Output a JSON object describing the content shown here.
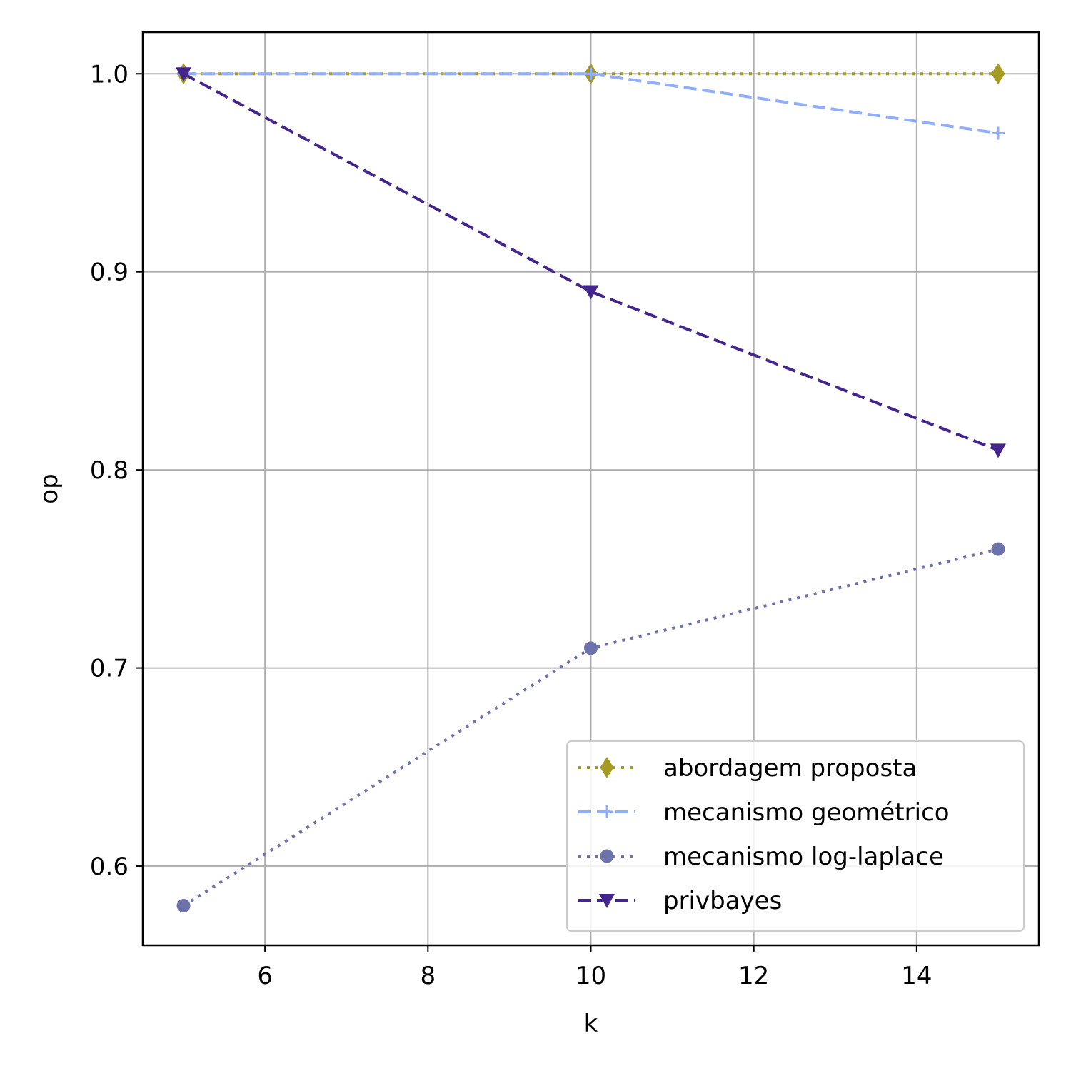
{
  "chart_data": {
    "type": "line",
    "xlabel": "k",
    "ylabel": "op",
    "xlim": [
      4.5,
      15.5
    ],
    "ylim": [
      0.56,
      1.021
    ],
    "xticks": [
      6,
      8,
      10,
      12,
      14
    ],
    "xtick_labels": [
      "6",
      "8",
      "10",
      "12",
      "14"
    ],
    "yticks": [
      0.6,
      0.7,
      0.8,
      0.9,
      1.0
    ],
    "ytick_labels": [
      "0.6",
      "0.7",
      "0.8",
      "0.9",
      "1.0"
    ],
    "grid": true,
    "legend_position": "lower-right",
    "series": [
      {
        "name": "abordagem proposta",
        "x": [
          5,
          10,
          15
        ],
        "y": [
          1.0,
          1.0,
          1.0
        ],
        "color": "#a59a22",
        "linestyle": "dotted",
        "marker": "diamond"
      },
      {
        "name": "mecanismo geométrico",
        "x": [
          5,
          10,
          15
        ],
        "y": [
          1.0,
          1.0,
          0.97
        ],
        "color": "#91aefc",
        "linestyle": "dashed",
        "marker": "plus"
      },
      {
        "name": "mecanismo log-laplace",
        "x": [
          5,
          10,
          15
        ],
        "y": [
          0.58,
          0.71,
          0.76
        ],
        "color": "#6d72ab",
        "linestyle": "dotted",
        "marker": "circle"
      },
      {
        "name": "privbayes",
        "x": [
          5,
          10,
          15
        ],
        "y": [
          1.0,
          0.89,
          0.81
        ],
        "color": "#44258c",
        "linestyle": "dashed",
        "marker": "triangle-down"
      }
    ]
  }
}
